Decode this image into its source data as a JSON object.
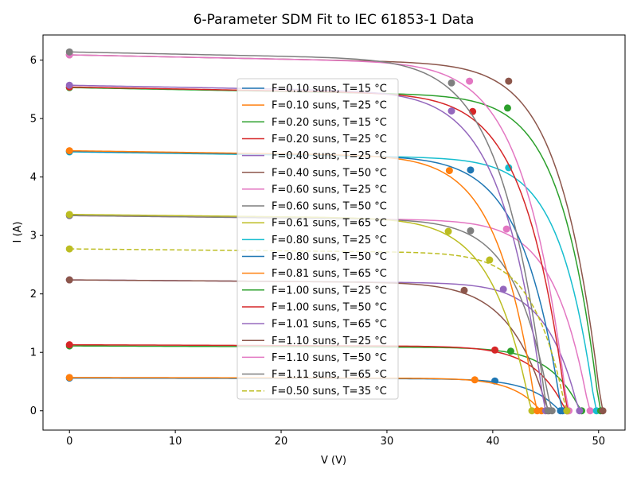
{
  "chart_data": {
    "type": "line",
    "title": "6-Parameter SDM Fit to IEC 61853-1 Data",
    "xlabel": "V (V)",
    "ylabel": "I (A)",
    "xlim": [
      -2.5,
      52.5
    ],
    "ylim": [
      -0.33,
      6.43
    ],
    "xticks": [
      0,
      10,
      20,
      30,
      40,
      50
    ],
    "yticks": [
      0,
      1,
      2,
      3,
      4,
      5,
      6
    ],
    "grid": false,
    "legend": "center",
    "series": [
      {
        "name": "F=0.10 suns, T=15 °C",
        "color": "#1f77b4",
        "dashed": false,
        "isc": 0.56,
        "voc": 46.4,
        "vmp": 40.2,
        "imp": 0.51
      },
      {
        "name": "F=0.10 suns, T=25 °C",
        "color": "#ff7f0e",
        "dashed": false,
        "isc": 0.57,
        "voc": 44.6,
        "vmp": 38.3,
        "imp": 0.53
      },
      {
        "name": "F=0.20 suns, T=15 °C",
        "color": "#2ca02c",
        "dashed": false,
        "isc": 1.11,
        "voc": 48.4,
        "vmp": 41.7,
        "imp": 1.02
      },
      {
        "name": "F=0.20 suns, T=25 °C",
        "color": "#d62728",
        "dashed": false,
        "isc": 1.13,
        "voc": 47.0,
        "vmp": 40.2,
        "imp": 1.04
      },
      {
        "name": "F=0.40 suns, T=25 °C",
        "color": "#9467bd",
        "dashed": false,
        "isc": 2.24,
        "voc": 48.2,
        "vmp": 41.0,
        "imp": 2.08
      },
      {
        "name": "F=0.40 suns, T=50 °C",
        "color": "#8c564b",
        "dashed": false,
        "isc": 2.24,
        "voc": 45.3,
        "vmp": 37.3,
        "imp": 2.06
      },
      {
        "name": "F=0.60 suns, T=25 °C",
        "color": "#e377c2",
        "dashed": false,
        "isc": 3.34,
        "voc": 49.2,
        "vmp": 41.3,
        "imp": 3.11
      },
      {
        "name": "F=0.60 suns, T=50 °C",
        "color": "#7f7f7f",
        "dashed": false,
        "isc": 3.34,
        "voc": 45.6,
        "vmp": 37.9,
        "imp": 3.08
      },
      {
        "name": "F=0.61 suns, T=65 °C",
        "color": "#bcbd22",
        "dashed": false,
        "isc": 3.36,
        "voc": 43.7,
        "vmp": 35.8,
        "imp": 3.07
      },
      {
        "name": "F=0.80 suns, T=25 °C",
        "color": "#17becf",
        "dashed": false,
        "isc": 4.43,
        "voc": 49.8,
        "vmp": 41.5,
        "imp": 4.16
      },
      {
        "name": "F=0.80 suns, T=50 °C",
        "color": "#1f77b4",
        "dashed": false,
        "isc": 4.44,
        "voc": 46.6,
        "vmp": 37.9,
        "imp": 4.12
      },
      {
        "name": "F=0.81 suns, T=65 °C",
        "color": "#ff7f0e",
        "dashed": false,
        "isc": 4.45,
        "voc": 44.2,
        "vmp": 35.9,
        "imp": 4.11
      },
      {
        "name": "F=1.00 suns, T=25 °C",
        "color": "#2ca02c",
        "dashed": false,
        "isc": 5.53,
        "voc": 50.2,
        "vmp": 41.4,
        "imp": 5.18
      },
      {
        "name": "F=1.00 suns, T=50 °C",
        "color": "#d62728",
        "dashed": false,
        "isc": 5.54,
        "voc": 47.1,
        "vmp": 38.1,
        "imp": 5.12
      },
      {
        "name": "F=1.01 suns, T=65 °C",
        "color": "#9467bd",
        "dashed": false,
        "isc": 5.57,
        "voc": 45.0,
        "vmp": 36.1,
        "imp": 5.13
      },
      {
        "name": "F=1.10 suns, T=25 °C",
        "color": "#8c564b",
        "dashed": false,
        "isc": 6.09,
        "voc": 50.4,
        "vmp": 41.5,
        "imp": 5.64
      },
      {
        "name": "F=1.10 suns, T=50 °C",
        "color": "#e377c2",
        "dashed": false,
        "isc": 6.09,
        "voc": 47.2,
        "vmp": 37.8,
        "imp": 5.64
      },
      {
        "name": "F=1.11 suns, T=65 °C",
        "color": "#7f7f7f",
        "dashed": false,
        "isc": 6.14,
        "voc": 45.2,
        "vmp": 36.1,
        "imp": 5.61
      },
      {
        "name": "F=0.50 suns, T=35 °C",
        "color": "#bcbd22",
        "dashed": true,
        "isc": 2.77,
        "voc": 47.0,
        "vmp": 39.7,
        "imp": 2.58
      }
    ]
  }
}
